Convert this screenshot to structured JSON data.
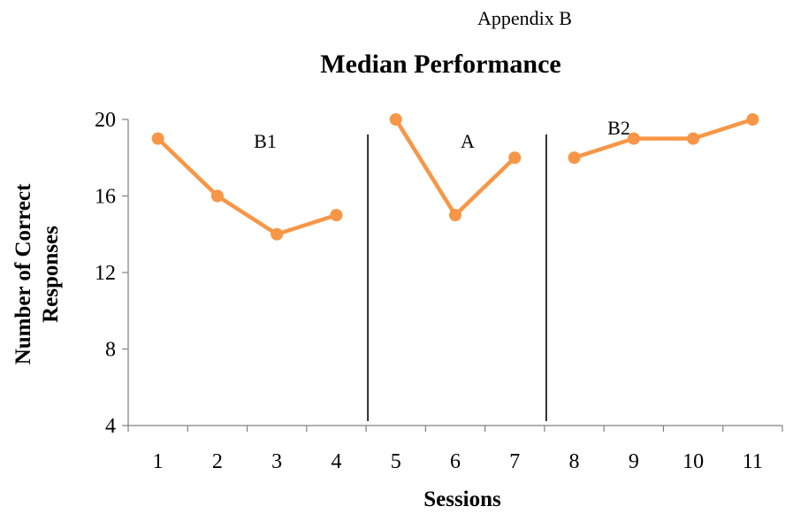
{
  "header": {
    "appendix": "Appendix B"
  },
  "chart_data": {
    "type": "line",
    "title": "Median Performance",
    "xlabel": "Sessions",
    "ylabel_lines": [
      "Number of Correct",
      "Responses"
    ],
    "ylim": [
      4,
      20
    ],
    "yticks": [
      4,
      8,
      12,
      16,
      20
    ],
    "categories": [
      "1",
      "2",
      "3",
      "4",
      "5",
      "6",
      "7",
      "8",
      "9",
      "10",
      "11"
    ],
    "series_color": "#F79646",
    "phases": [
      {
        "label": "B1",
        "sessions": [
          1,
          2,
          3,
          4
        ],
        "values": [
          19,
          16,
          14,
          15
        ]
      },
      {
        "label": "A",
        "sessions": [
          5,
          6,
          7
        ],
        "values": [
          20,
          15,
          18
        ]
      },
      {
        "label": "B2",
        "sessions": [
          8,
          9,
          10,
          11
        ],
        "values": [
          18,
          19,
          19,
          20
        ]
      }
    ],
    "phase_change_after_sessions": [
      4,
      7
    ]
  }
}
